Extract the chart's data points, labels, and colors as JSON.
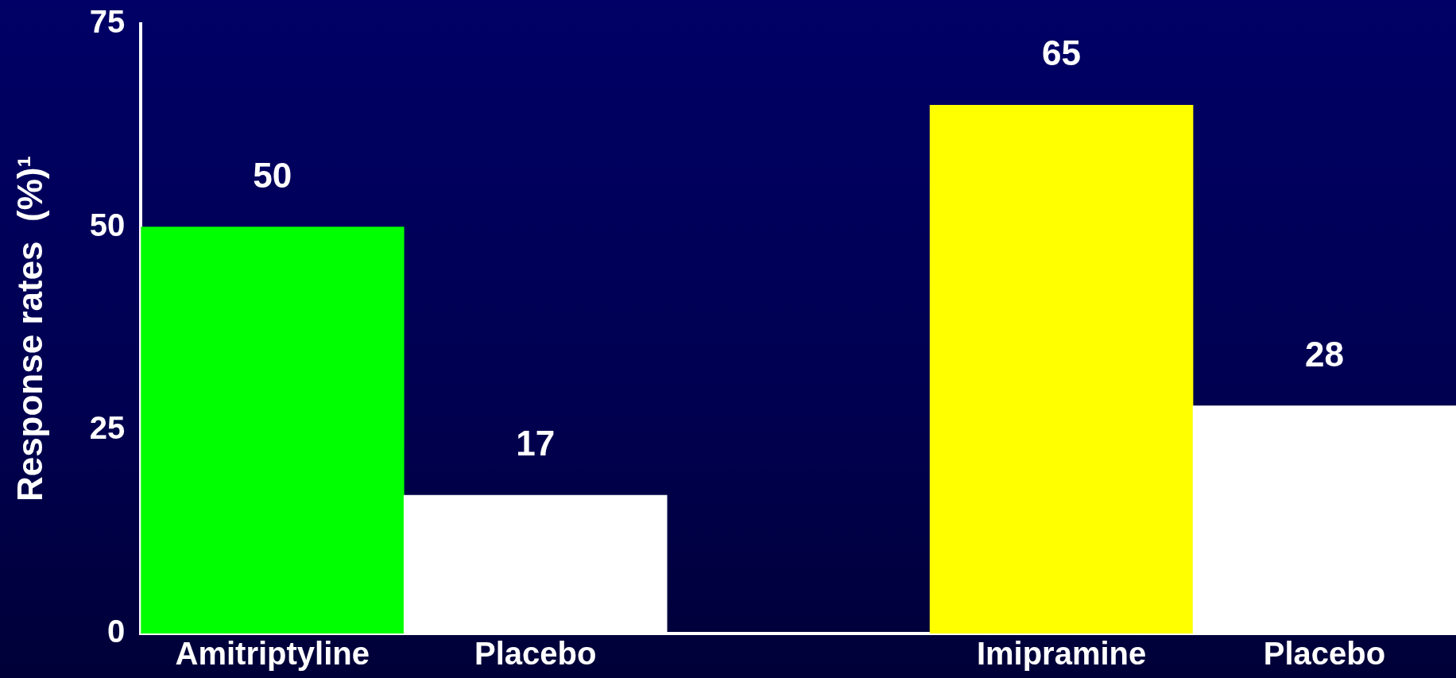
{
  "chart_data": {
    "type": "bar",
    "ylabel": "Response rates  (%)¹",
    "categories": [
      "Amitriptyline",
      "Placebo",
      null,
      "Imipramine",
      "Placebo"
    ],
    "values": [
      50,
      17,
      null,
      65,
      28
    ],
    "colors": [
      "#00ff00",
      "#ffffff",
      "#ffffff",
      "#ffff00",
      "#ffffff"
    ],
    "ylim": [
      0,
      75
    ],
    "yticks": [
      0,
      25,
      50,
      75
    ],
    "grid": false,
    "legend": false,
    "data_labels": true
  }
}
